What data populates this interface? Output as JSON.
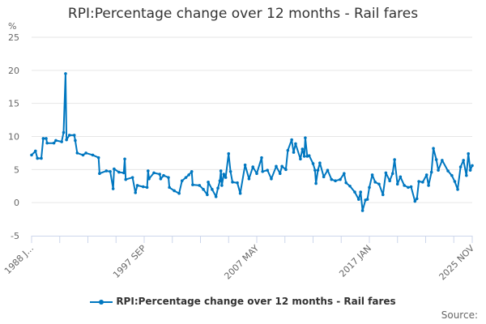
{
  "chart_data": {
    "type": "line",
    "title": "RPI:Percentage change over 12 months - Rail fares",
    "ylabel": "%",
    "xlabel": "",
    "ylim": [
      -5,
      25
    ],
    "yticks": [
      -5,
      0,
      5,
      10,
      15,
      20,
      25
    ],
    "xrange": [
      "1988-01",
      "2025-11"
    ],
    "xtick_labels": [
      "1988 J...",
      "1997 SEP",
      "2007 MAY",
      "2017 JAN",
      "2025 NOV"
    ],
    "xtick_label_dates": [
      "1988-01",
      "1997-09",
      "2007-05",
      "2017-01",
      "2025-11"
    ],
    "grid": "horizontal",
    "legend_placement": "bottom",
    "color": "#0077c0",
    "series": [
      {
        "name": "RPI:Percentage change over 12 months - Rail fares",
        "points": [
          [
            "1988-01",
            7.2
          ],
          [
            "1988-05",
            7.8
          ],
          [
            "1988-07",
            6.7
          ],
          [
            "1988-11",
            6.7
          ],
          [
            "1989-01",
            9.7
          ],
          [
            "1989-04",
            9.7
          ],
          [
            "1989-05",
            9.0
          ],
          [
            "1989-12",
            9.0
          ],
          [
            "1990-02",
            9.4
          ],
          [
            "1990-08",
            9.2
          ],
          [
            "1990-10",
            10.6
          ],
          [
            "1990-12",
            19.5
          ],
          [
            "1991-01",
            9.5
          ],
          [
            "1991-04",
            10.2
          ],
          [
            "1991-09",
            10.2
          ],
          [
            "1991-10",
            9.4
          ],
          [
            "1991-12",
            7.5
          ],
          [
            "1992-06",
            7.2
          ],
          [
            "1992-09",
            7.5
          ],
          [
            "1993-04",
            7.2
          ],
          [
            "1993-10",
            6.8
          ],
          [
            "1993-11",
            4.4
          ],
          [
            "1994-06",
            4.8
          ],
          [
            "1994-10",
            4.7
          ],
          [
            "1995-01",
            2.1
          ],
          [
            "1995-02",
            5.1
          ],
          [
            "1995-07",
            4.6
          ],
          [
            "1995-12",
            4.5
          ],
          [
            "1996-01",
            6.6
          ],
          [
            "1996-02",
            3.5
          ],
          [
            "1996-09",
            3.8
          ],
          [
            "1996-12",
            1.5
          ],
          [
            "1997-02",
            2.6
          ],
          [
            "1997-08",
            2.4
          ],
          [
            "1997-12",
            2.3
          ],
          [
            "1998-01",
            4.8
          ],
          [
            "1998-02",
            3.6
          ],
          [
            "1998-07",
            4.5
          ],
          [
            "1999-01",
            4.3
          ],
          [
            "1999-02",
            3.6
          ],
          [
            "1999-05",
            4.1
          ],
          [
            "1999-10",
            3.8
          ],
          [
            "1999-11",
            2.3
          ],
          [
            "2000-04",
            1.8
          ],
          [
            "2000-09",
            1.4
          ],
          [
            "2000-12",
            3.3
          ],
          [
            "2001-04",
            3.8
          ],
          [
            "2001-07",
            4.2
          ],
          [
            "2001-10",
            4.7
          ],
          [
            "2001-11",
            2.7
          ],
          [
            "2002-06",
            2.6
          ],
          [
            "2002-10",
            2.0
          ],
          [
            "2003-02",
            1.2
          ],
          [
            "2003-03",
            3.1
          ],
          [
            "2003-07",
            2.0
          ],
          [
            "2003-11",
            0.9
          ],
          [
            "2004-01",
            2.2
          ],
          [
            "2004-03",
            3.3
          ],
          [
            "2004-04",
            4.8
          ],
          [
            "2004-05",
            2.6
          ],
          [
            "2004-07",
            4.3
          ],
          [
            "2004-09",
            3.8
          ],
          [
            "2004-12",
            7.4
          ],
          [
            "2005-02",
            4.7
          ],
          [
            "2005-04",
            3.1
          ],
          [
            "2005-09",
            3.0
          ],
          [
            "2005-12",
            1.4
          ],
          [
            "2006-05",
            5.7
          ],
          [
            "2006-09",
            3.6
          ],
          [
            "2007-01",
            5.4
          ],
          [
            "2007-05",
            4.4
          ],
          [
            "2007-10",
            6.8
          ],
          [
            "2007-11",
            4.7
          ],
          [
            "2008-04",
            4.9
          ],
          [
            "2008-08",
            3.6
          ],
          [
            "2009-01",
            5.5
          ],
          [
            "2009-05",
            4.4
          ],
          [
            "2009-07",
            5.5
          ],
          [
            "2009-11",
            5.0
          ],
          [
            "2010-01",
            7.9
          ],
          [
            "2010-05",
            9.5
          ],
          [
            "2010-07",
            7.6
          ],
          [
            "2010-09",
            8.9
          ],
          [
            "2011-02",
            6.6
          ],
          [
            "2011-04",
            8.1
          ],
          [
            "2011-06",
            7.0
          ],
          [
            "2011-07",
            9.8
          ],
          [
            "2011-09",
            7.0
          ],
          [
            "2011-11",
            7.1
          ],
          [
            "2012-03",
            5.9
          ],
          [
            "2012-05",
            4.9
          ],
          [
            "2012-06",
            2.9
          ],
          [
            "2012-08",
            4.9
          ],
          [
            "2012-10",
            6.0
          ],
          [
            "2013-02",
            3.9
          ],
          [
            "2013-06",
            4.9
          ],
          [
            "2013-10",
            3.5
          ],
          [
            "2014-02",
            3.3
          ],
          [
            "2014-07",
            3.5
          ],
          [
            "2014-11",
            4.4
          ],
          [
            "2015-01",
            3.0
          ],
          [
            "2015-05",
            2.5
          ],
          [
            "2015-10",
            1.6
          ],
          [
            "2016-02",
            0.5
          ],
          [
            "2016-04",
            1.6
          ],
          [
            "2016-06",
            -1.2
          ],
          [
            "2016-09",
            0.4
          ],
          [
            "2016-11",
            0.5
          ],
          [
            "2017-01",
            2.3
          ],
          [
            "2017-04",
            4.2
          ],
          [
            "2017-07",
            3.1
          ],
          [
            "2017-11",
            2.8
          ],
          [
            "2018-03",
            1.2
          ],
          [
            "2018-06",
            4.5
          ],
          [
            "2018-10",
            3.3
          ],
          [
            "2019-01",
            4.4
          ],
          [
            "2019-03",
            6.5
          ],
          [
            "2019-06",
            2.8
          ],
          [
            "2019-09",
            3.9
          ],
          [
            "2020-01",
            2.6
          ],
          [
            "2020-05",
            2.3
          ],
          [
            "2020-08",
            2.4
          ],
          [
            "2020-12",
            0.2
          ],
          [
            "2021-02",
            0.6
          ],
          [
            "2021-04",
            3.2
          ],
          [
            "2021-08",
            3.1
          ],
          [
            "2021-12",
            4.2
          ],
          [
            "2022-02",
            2.6
          ],
          [
            "2022-05",
            4.6
          ],
          [
            "2022-07",
            8.2
          ],
          [
            "2022-10",
            6.5
          ],
          [
            "2022-12",
            4.9
          ],
          [
            "2023-04",
            6.4
          ],
          [
            "2023-10",
            4.8
          ],
          [
            "2024-02",
            4.1
          ],
          [
            "2024-05",
            3.2
          ],
          [
            "2024-08",
            2.0
          ],
          [
            "2024-11",
            5.4
          ],
          [
            "2025-02",
            6.4
          ],
          [
            "2025-05",
            4.1
          ],
          [
            "2025-07",
            7.4
          ],
          [
            "2025-09",
            4.9
          ],
          [
            "2025-11",
            5.6
          ]
        ]
      }
    ],
    "source_label": "Source:"
  }
}
